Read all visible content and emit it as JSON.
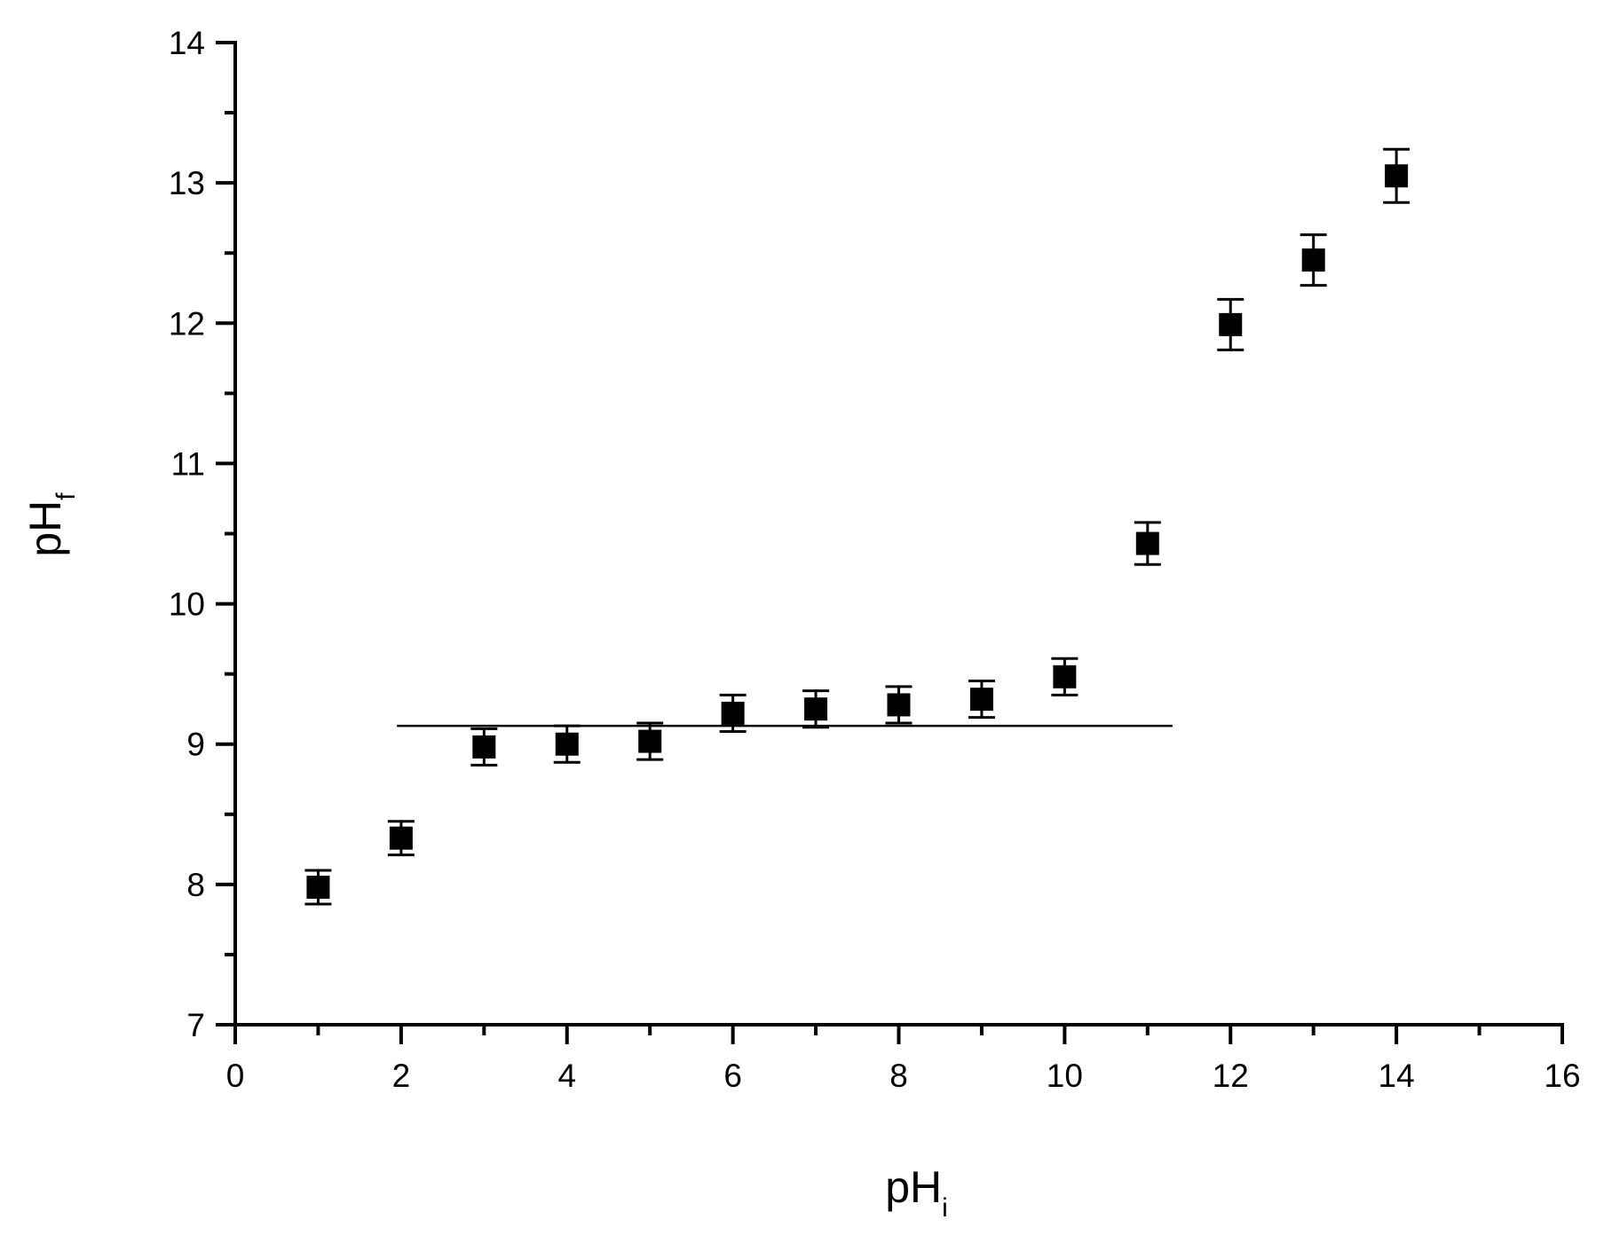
{
  "chart_data": {
    "type": "scatter",
    "xlabel": "pH",
    "xlabel_subscript": "i",
    "ylabel": "pH",
    "ylabel_subscript": "f",
    "xlim": [
      0,
      16
    ],
    "ylim": [
      7,
      14
    ],
    "x_ticks": [
      0,
      2,
      4,
      6,
      8,
      10,
      12,
      14,
      16
    ],
    "y_ticks": [
      7,
      8,
      9,
      10,
      11,
      12,
      13,
      14
    ],
    "x_tick_labels": [
      "0",
      "2",
      "4",
      "6",
      "8",
      "10",
      "12",
      "14",
      "16"
    ],
    "y_tick_labels": [
      "7",
      "8",
      "9",
      "10",
      "11",
      "12",
      "13",
      "14"
    ],
    "grid": false,
    "legend": "none",
    "marker": "square",
    "marker_color": "#000000",
    "series": [
      {
        "x": [
          1,
          2,
          3,
          4,
          5,
          6,
          7,
          8,
          9,
          10,
          11,
          12,
          13,
          14
        ],
        "y": [
          7.98,
          8.33,
          8.98,
          9.0,
          9.02,
          9.22,
          9.25,
          9.28,
          9.32,
          9.48,
          10.43,
          11.99,
          12.45,
          13.05
        ],
        "error": [
          0.12,
          0.12,
          0.13,
          0.13,
          0.13,
          0.13,
          0.13,
          0.13,
          0.13,
          0.13,
          0.15,
          0.18,
          0.18,
          0.19
        ]
      }
    ],
    "reference_line": {
      "y": 9.13,
      "x_start": 1.95,
      "x_end": 11.3
    }
  }
}
